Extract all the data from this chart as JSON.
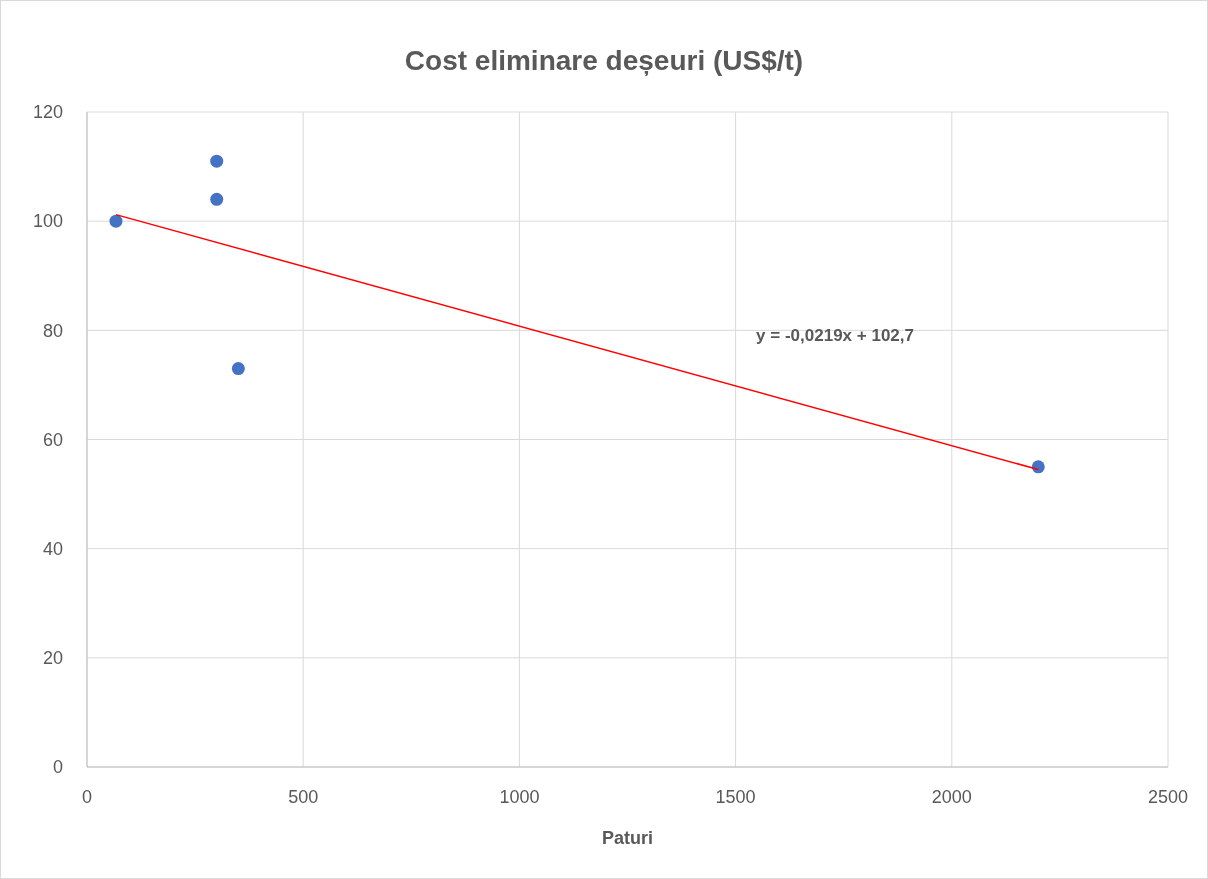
{
  "chart_data": {
    "type": "scatter",
    "title": "Cost eliminare deșeuri (US$/t)",
    "xlabel": "Paturi",
    "xlim": [
      0,
      2500
    ],
    "xticks": [
      0,
      500,
      1000,
      1500,
      2000,
      2500
    ],
    "ylim": [
      0,
      120
    ],
    "yticks": [
      0,
      20,
      40,
      60,
      80,
      100,
      120
    ],
    "grid": true,
    "series": [
      {
        "marker": "circle",
        "color": "#4472c4",
        "x": [
          67,
          300,
          300,
          350,
          2200
        ],
        "values": [
          100,
          111,
          104,
          73,
          55
        ]
      },
      {
        "type": "line",
        "color": "#ff0000",
        "line_style": "solid",
        "x": [
          67,
          2200
        ],
        "values": [
          101.2,
          54.5
        ]
      }
    ],
    "annotations": [
      "y = -0,0219x + 102,7"
    ]
  }
}
